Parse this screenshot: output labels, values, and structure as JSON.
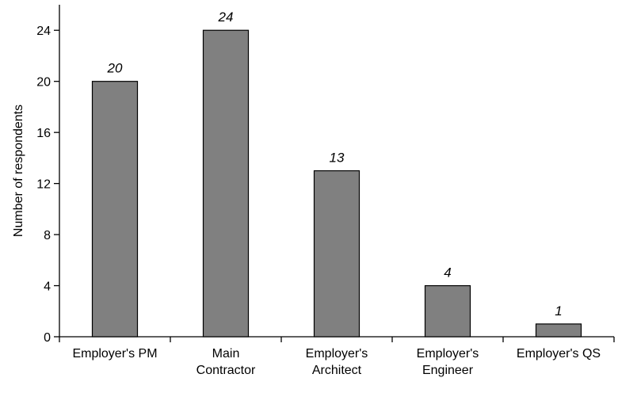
{
  "chart_data": {
    "type": "bar",
    "categories": [
      [
        "Employer's PM"
      ],
      [
        "Main",
        "Contractor"
      ],
      [
        "Employer's",
        "Architect"
      ],
      [
        "Employer's",
        "Engineer"
      ],
      [
        "Employer's QS"
      ]
    ],
    "values": [
      20,
      24,
      13,
      4,
      1
    ],
    "data_labels": [
      "20",
      "24",
      "13",
      "4",
      "1"
    ],
    "title": "",
    "xlabel": "",
    "ylabel": "Number of respondents",
    "ylim": [
      0,
      26
    ],
    "yticks": [
      0,
      4,
      8,
      12,
      16,
      20,
      24
    ],
    "grid": false,
    "legend": "none",
    "colors": {
      "bar": "#808080",
      "bar_stroke": "#000000",
      "axis": "#000000"
    }
  }
}
